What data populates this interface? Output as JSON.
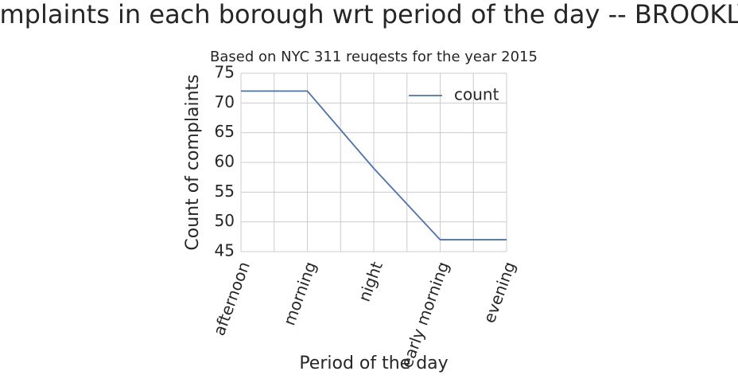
{
  "chart_data": {
    "type": "line",
    "title": "Complaints in each borough wrt period of the day -- BROOKLYN",
    "subtitle": "Based on NYC 311 reuqests for the year 2015",
    "xlabel": "Period of the day",
    "ylabel": "Count of complaints",
    "x": [
      0,
      1,
      2,
      3,
      4
    ],
    "series": [
      {
        "name": "count",
        "color": "#4c72b0",
        "values": [
          72,
          72,
          59,
          47,
          47
        ]
      }
    ],
    "xlim": [
      0,
      4
    ],
    "xticks": [
      {
        "value": 0,
        "label": "afternoon"
      },
      {
        "value": 1,
        "label": "morning"
      },
      {
        "value": 2,
        "label": "night"
      },
      {
        "value": 3,
        "label": "early morning"
      },
      {
        "value": 4,
        "label": "evening"
      }
    ],
    "x_minor_ticks": [
      0.5,
      1.5,
      2.5,
      3.5
    ],
    "ylim": [
      45,
      75
    ],
    "yticks": [
      45,
      50,
      55,
      60,
      65,
      70,
      75
    ],
    "grid": true,
    "legend": "upper right"
  }
}
